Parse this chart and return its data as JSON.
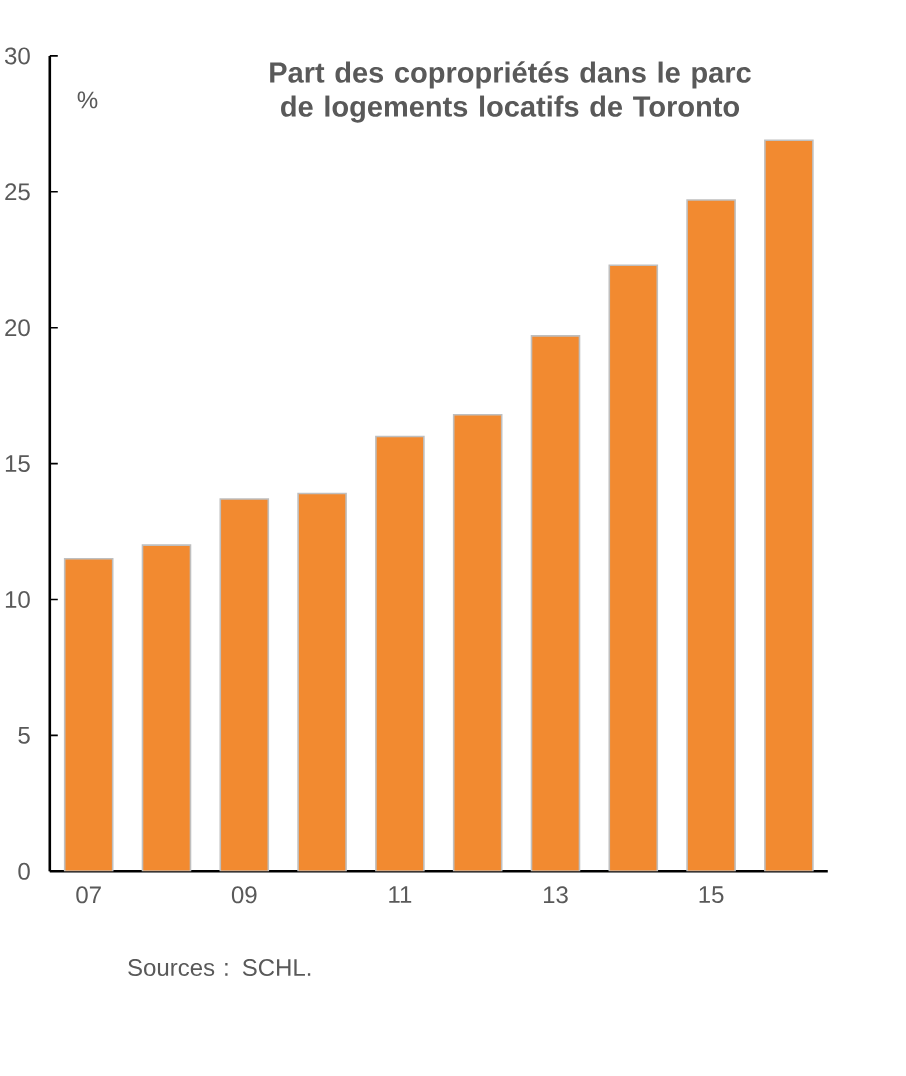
{
  "chart_data": {
    "type": "bar",
    "title": "Part des copropriétés dans le parc de logements locatifs de Toronto",
    "ylabel": "%",
    "categories": [
      "07",
      null,
      "09",
      null,
      "11",
      null,
      "13",
      null,
      "15",
      null
    ],
    "values": [
      11.5,
      12.0,
      13.7,
      13.9,
      16.0,
      16.8,
      19.7,
      22.3,
      24.7,
      26.9
    ],
    "color": "#f28a30",
    "ylim": [
      0,
      30
    ],
    "yticks": [
      0,
      5,
      10,
      15,
      20,
      25,
      30
    ],
    "annotations": [
      "Sources : SCHL."
    ]
  }
}
